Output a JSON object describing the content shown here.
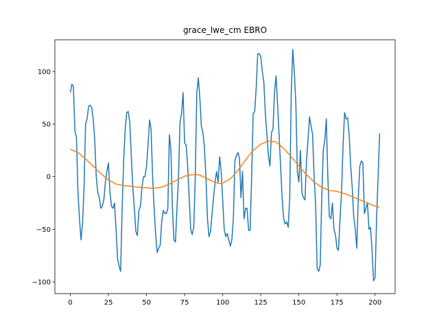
{
  "chart_data": {
    "type": "line",
    "title": "grace_lwe_cm EBRO",
    "x": [
      0,
      1,
      2,
      3,
      4,
      5,
      6,
      7,
      8,
      9,
      10,
      11,
      12,
      13,
      14,
      15,
      16,
      17,
      18,
      19,
      20,
      21,
      22,
      23,
      24,
      25,
      26,
      27,
      28,
      29,
      30,
      31,
      32,
      33,
      34,
      35,
      36,
      37,
      38,
      39,
      40,
      41,
      42,
      43,
      44,
      45,
      46,
      47,
      48,
      49,
      50,
      51,
      52,
      53,
      54,
      55,
      56,
      57,
      58,
      59,
      60,
      61,
      62,
      63,
      64,
      65,
      66,
      67,
      68,
      69,
      70,
      71,
      72,
      73,
      74,
      75,
      76,
      77,
      78,
      79,
      80,
      81,
      82,
      83,
      84,
      85,
      86,
      87,
      88,
      89,
      90,
      91,
      92,
      93,
      94,
      95,
      96,
      97,
      98,
      99,
      100,
      101,
      102,
      103,
      104,
      105,
      106,
      107,
      108,
      109,
      110,
      111,
      112,
      113,
      114,
      115,
      116,
      117,
      118,
      119,
      120,
      121,
      122,
      123,
      124,
      125,
      126,
      127,
      128,
      129,
      130,
      131,
      132,
      133,
      134,
      135,
      136,
      137,
      138,
      139,
      140,
      141,
      142,
      143,
      144,
      145,
      146,
      147,
      148,
      149,
      150,
      151,
      152,
      153,
      154,
      155,
      156,
      157,
      158,
      159,
      160,
      161,
      162,
      163,
      164,
      165,
      166,
      167,
      168,
      169,
      170,
      171,
      172,
      173,
      174,
      175,
      176,
      177,
      178,
      179,
      180,
      181,
      182,
      183,
      184,
      185,
      186,
      187,
      188,
      189,
      190,
      191,
      192,
      193,
      194,
      195,
      196,
      197,
      198,
      199,
      200,
      201,
      202,
      203
    ],
    "series": [
      {
        "color": "#1f77b4",
        "values": [
          80,
          88,
          86,
          43,
          38,
          -15,
          -40,
          -60,
          -45,
          -10,
          50,
          55,
          67,
          68,
          66,
          55,
          35,
          0,
          -15,
          -20,
          -30,
          -28,
          -22,
          -5,
          5,
          13,
          -15,
          -28,
          -30,
          -25,
          -50,
          -78,
          -85,
          -90,
          -30,
          15,
          45,
          61,
          62,
          52,
          20,
          -10,
          -30,
          -52,
          -56,
          -32,
          -28,
          -10,
          0,
          0,
          10,
          30,
          54,
          45,
          0,
          -30,
          -55,
          -72,
          -68,
          -65,
          -42,
          -32,
          -35,
          -35,
          -30,
          40,
          25,
          -30,
          -60,
          -62,
          -30,
          0,
          52,
          60,
          80,
          32,
          30,
          10,
          -20,
          -50,
          -55,
          -48,
          0,
          80,
          94,
          75,
          48,
          42,
          28,
          0,
          -40,
          -57,
          -52,
          -35,
          -20,
          -5,
          5,
          -5,
          19,
          5,
          -22,
          -50,
          -57,
          -54,
          -60,
          -66,
          -60,
          -40,
          15,
          20,
          23,
          18,
          -20,
          5,
          -40,
          -30,
          -30,
          -51,
          -51,
          0,
          60,
          62,
          85,
          117,
          117,
          114,
          100,
          90,
          60,
          40,
          20,
          10,
          42,
          45,
          80,
          96,
          70,
          40,
          10,
          -20,
          -40,
          -45,
          -43,
          -48,
          -20,
          80,
          121,
          100,
          70,
          5,
          -5,
          25,
          -15,
          -20,
          -22,
          15,
          35,
          57,
          48,
          40,
          0,
          -27,
          -87,
          -90,
          -84,
          -20,
          25,
          35,
          55,
          0,
          -38,
          -40,
          -25,
          -50,
          -55,
          -68,
          -70,
          -40,
          -15,
          30,
          61,
          55,
          56,
          40,
          10,
          -10,
          -38,
          -50,
          -68,
          -20,
          10,
          15,
          13,
          -35,
          -30,
          -25,
          -50,
          -48,
          -70,
          -99,
          -96,
          -40,
          0,
          41
        ]
      },
      {
        "color": "#ff7f0e",
        "values": [
          26,
          25.4,
          24.8,
          24.2,
          23.6,
          23,
          21.8,
          20.6,
          19.4,
          18.2,
          17,
          15.6,
          14.2,
          12.8,
          11.4,
          10,
          8.6,
          7.2,
          5.8,
          4.4,
          3,
          1.8,
          0.6,
          -0.6,
          -1.8,
          -3,
          -3.8,
          -4.6,
          -5.4,
          -6.2,
          -7,
          -7.3,
          -7.6,
          -7.9,
          -8.2,
          -8.5,
          -8.6,
          -8.7,
          -8.8,
          -8.9,
          -9,
          -9.2,
          -9.4,
          -9.6,
          -9.8,
          -10,
          -10.1,
          -10.2,
          -10.3,
          -10.4,
          -10.5,
          -10.6,
          -10.7,
          -10.8,
          -10.9,
          -11,
          -10.8,
          -10.6,
          -10.4,
          -10.2,
          -10,
          -9.4,
          -8.8,
          -8.2,
          -7.6,
          -7,
          -6.2,
          -5.4,
          -4.6,
          -3.8,
          -3,
          -2.3,
          -1.6,
          -0.9,
          -0.2,
          0.5,
          0.8,
          1.1,
          1.4,
          1.7,
          2,
          2,
          2,
          2,
          1.8,
          1.5,
          0.8,
          0.1,
          -0.6,
          -1.3,
          -2,
          -2.7,
          -3.4,
          -4.1,
          -4.8,
          -5.5,
          -5.8,
          -6.2,
          -6.5,
          -6.3,
          -6,
          -5.2,
          -4.4,
          -3.6,
          -2.8,
          -2,
          -0.4,
          1.2,
          2.8,
          4.4,
          6,
          8,
          10,
          12,
          14,
          16,
          17.8,
          19.6,
          21.4,
          23.2,
          25,
          26.2,
          27.4,
          28.6,
          29.8,
          31,
          31.6,
          32.2,
          32.8,
          33.4,
          34,
          33.8,
          33.6,
          33.4,
          33.2,
          33,
          31.8,
          30.6,
          29.4,
          28.2,
          27,
          25.4,
          23.8,
          22.2,
          20.6,
          19,
          17.2,
          15.4,
          13.6,
          11.8,
          10,
          8.4,
          6.8,
          5.2,
          3.6,
          2,
          0.6,
          -0.8,
          -2.2,
          -3.6,
          -5,
          -6,
          -7,
          -8,
          -9,
          -10,
          -10.6,
          -11.2,
          -11.8,
          -12.4,
          -13,
          -13.2,
          -13.4,
          -13.6,
          -13.8,
          -14,
          -14.4,
          -14.8,
          -15.2,
          -15.6,
          -16,
          -16.6,
          -17.2,
          -17.8,
          -18.4,
          -19,
          -19.6,
          -20.2,
          -20.8,
          -21.4,
          -22,
          -22.6,
          -23.2,
          -23.8,
          -24.4,
          -25,
          -25.6,
          -26.2,
          -26.8,
          -27.4,
          -28,
          -28.3,
          -28.7,
          -29
        ]
      }
    ],
    "xlim": [
      -10.15,
      213.15
    ],
    "ylim": [
      -111.1,
      130.2
    ],
    "xticks": [
      0,
      25,
      50,
      75,
      100,
      125,
      150,
      175,
      200
    ],
    "yticks": [
      {
        "value": -100,
        "label": "−100"
      },
      {
        "value": -50,
        "label": "−50"
      },
      0,
      50,
      100
    ]
  }
}
